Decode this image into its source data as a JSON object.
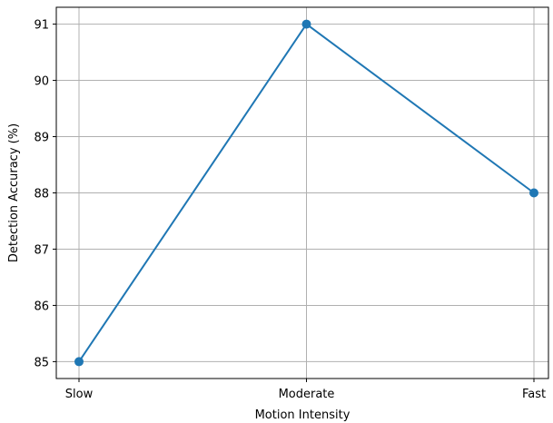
{
  "chart_data": {
    "type": "line",
    "title": "",
    "xlabel": "Motion Intensity",
    "ylabel": "Detection Accuracy (%)",
    "categories": [
      "Slow",
      "Moderate",
      "Fast"
    ],
    "series": [
      {
        "values": [
          85,
          91,
          88
        ]
      }
    ],
    "ylim": [
      84.7,
      91.3
    ],
    "yticks": [
      85,
      86,
      87,
      88,
      89,
      90,
      91
    ],
    "grid": true,
    "marker": "circle",
    "colors": {
      "line": "#1f77b4",
      "grid": "#b0b0b0",
      "axes": "#000000"
    }
  }
}
